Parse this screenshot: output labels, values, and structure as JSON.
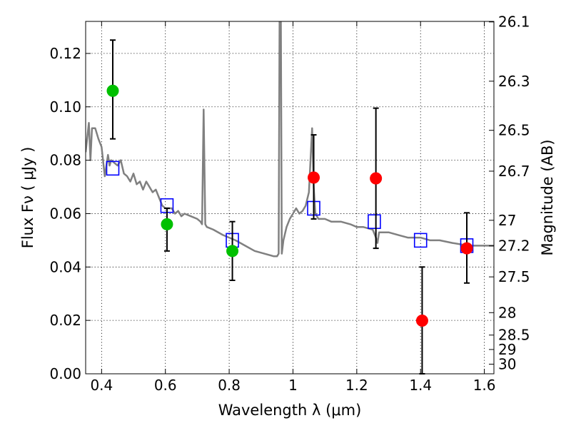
{
  "chart_data": {
    "type": "scatter",
    "xlabel": "Wavelength  λ (μm)",
    "ylabel": "Flux  Fν ( μJy )",
    "ylabel_right": "Magnitude (AB)",
    "xlim": [
      0.35,
      1.63
    ],
    "ylim": [
      0.0,
      0.132
    ],
    "grid": true,
    "x_ticks": [
      0.4,
      0.6,
      0.8,
      1.0,
      1.2,
      1.4,
      1.6
    ],
    "x_tick_labels": [
      "0.4",
      "0.6",
      "0.8",
      "1",
      "1.2",
      "1.4",
      "1.6"
    ],
    "y_ticks": [
      0.0,
      0.02,
      0.04,
      0.06,
      0.08,
      0.1,
      0.12
    ],
    "y_tick_labels": [
      "0.00",
      "0.02",
      "0.04",
      "0.06",
      "0.08",
      "0.10",
      "0.12"
    ],
    "mag_ticks": [
      {
        "label": "26.1",
        "flux": 0.1318
      },
      {
        "label": "26.3",
        "flux": 0.1096
      },
      {
        "label": "26.5",
        "flux": 0.0912
      },
      {
        "label": "26.7",
        "flux": 0.0759
      },
      {
        "label": "27",
        "flux": 0.0575
      },
      {
        "label": "27.2",
        "flux": 0.0479
      },
      {
        "label": "27.5",
        "flux": 0.0363
      },
      {
        "label": "28",
        "flux": 0.0229
      },
      {
        "label": "28.5",
        "flux": 0.0145
      },
      {
        "label": "29",
        "flux": 0.0091
      },
      {
        "label": "30",
        "flux": 0.0036
      }
    ],
    "series": [
      {
        "name": "",
        "kind": "line",
        "color": "#808080",
        "points": [
          [
            0.35,
            0.083
          ],
          [
            0.36,
            0.094
          ],
          [
            0.365,
            0.08
          ],
          [
            0.37,
            0.092
          ],
          [
            0.38,
            0.092
          ],
          [
            0.39,
            0.088
          ],
          [
            0.4,
            0.085
          ],
          [
            0.41,
            0.074
          ],
          [
            0.42,
            0.082
          ],
          [
            0.425,
            0.078
          ],
          [
            0.43,
            0.08
          ],
          [
            0.44,
            0.079
          ],
          [
            0.45,
            0.078
          ],
          [
            0.46,
            0.08
          ],
          [
            0.47,
            0.075
          ],
          [
            0.48,
            0.074
          ],
          [
            0.49,
            0.072
          ],
          [
            0.5,
            0.075
          ],
          [
            0.51,
            0.071
          ],
          [
            0.52,
            0.072
          ],
          [
            0.53,
            0.069
          ],
          [
            0.54,
            0.072
          ],
          [
            0.55,
            0.07
          ],
          [
            0.56,
            0.068
          ],
          [
            0.57,
            0.069
          ],
          [
            0.58,
            0.066
          ],
          [
            0.59,
            0.063
          ],
          [
            0.6,
            0.062
          ],
          [
            0.62,
            0.062
          ],
          [
            0.63,
            0.06
          ],
          [
            0.64,
            0.061
          ],
          [
            0.65,
            0.059
          ],
          [
            0.66,
            0.06
          ],
          [
            0.68,
            0.059
          ],
          [
            0.7,
            0.058
          ],
          [
            0.71,
            0.057
          ],
          [
            0.715,
            0.056
          ],
          [
            0.72,
            0.099
          ],
          [
            0.725,
            0.056
          ],
          [
            0.73,
            0.055
          ],
          [
            0.75,
            0.054
          ],
          [
            0.78,
            0.052
          ],
          [
            0.8,
            0.051
          ],
          [
            0.82,
            0.05
          ],
          [
            0.85,
            0.048
          ],
          [
            0.88,
            0.046
          ],
          [
            0.91,
            0.045
          ],
          [
            0.94,
            0.044
          ],
          [
            0.95,
            0.044
          ],
          [
            0.955,
            0.045
          ],
          [
            0.958,
            0.133
          ],
          [
            0.962,
            0.133
          ],
          [
            0.965,
            0.045
          ],
          [
            0.97,
            0.05
          ],
          [
            0.98,
            0.055
          ],
          [
            0.99,
            0.058
          ],
          [
            1.0,
            0.06
          ],
          [
            1.01,
            0.062
          ],
          [
            1.02,
            0.06
          ],
          [
            1.03,
            0.061
          ],
          [
            1.04,
            0.063
          ],
          [
            1.05,
            0.068
          ],
          [
            1.06,
            0.092
          ],
          [
            1.065,
            0.07
          ],
          [
            1.07,
            0.06
          ],
          [
            1.08,
            0.058
          ],
          [
            1.1,
            0.058
          ],
          [
            1.12,
            0.057
          ],
          [
            1.15,
            0.057
          ],
          [
            1.18,
            0.056
          ],
          [
            1.2,
            0.055
          ],
          [
            1.22,
            0.055
          ],
          [
            1.25,
            0.054
          ],
          [
            1.26,
            0.051
          ],
          [
            1.265,
            0.049
          ],
          [
            1.27,
            0.053
          ],
          [
            1.28,
            0.053
          ],
          [
            1.3,
            0.053
          ],
          [
            1.33,
            0.052
          ],
          [
            1.36,
            0.051
          ],
          [
            1.4,
            0.051
          ],
          [
            1.43,
            0.05
          ],
          [
            1.46,
            0.05
          ],
          [
            1.5,
            0.049
          ],
          [
            1.55,
            0.048
          ],
          [
            1.58,
            0.048
          ],
          [
            1.63,
            0.048
          ]
        ]
      },
      {
        "name": "",
        "kind": "square",
        "color": "#0000ff",
        "x": [
          0.435,
          0.605,
          0.81,
          1.065,
          1.255,
          1.4,
          1.545
        ],
        "y": [
          0.077,
          0.063,
          0.05,
          0.062,
          0.057,
          0.05,
          0.048
        ]
      },
      {
        "name": "",
        "kind": "point",
        "color": "#00c000",
        "x": [
          0.435,
          0.605,
          0.81
        ],
        "y": [
          0.106,
          0.056,
          0.046
        ],
        "err_low": [
          0.088,
          0.046,
          0.035
        ],
        "err_high": [
          0.125,
          0.062,
          0.057
        ]
      },
      {
        "name": "",
        "kind": "point",
        "color": "#ff0000",
        "x": [
          1.065,
          1.26,
          1.405,
          1.545
        ],
        "y": [
          0.0735,
          0.0732,
          0.0199,
          0.047
        ],
        "err_low": [
          0.058,
          0.047,
          0.0,
          0.034
        ],
        "err_high": [
          0.0895,
          0.0995,
          0.04,
          0.0603
        ]
      }
    ]
  }
}
